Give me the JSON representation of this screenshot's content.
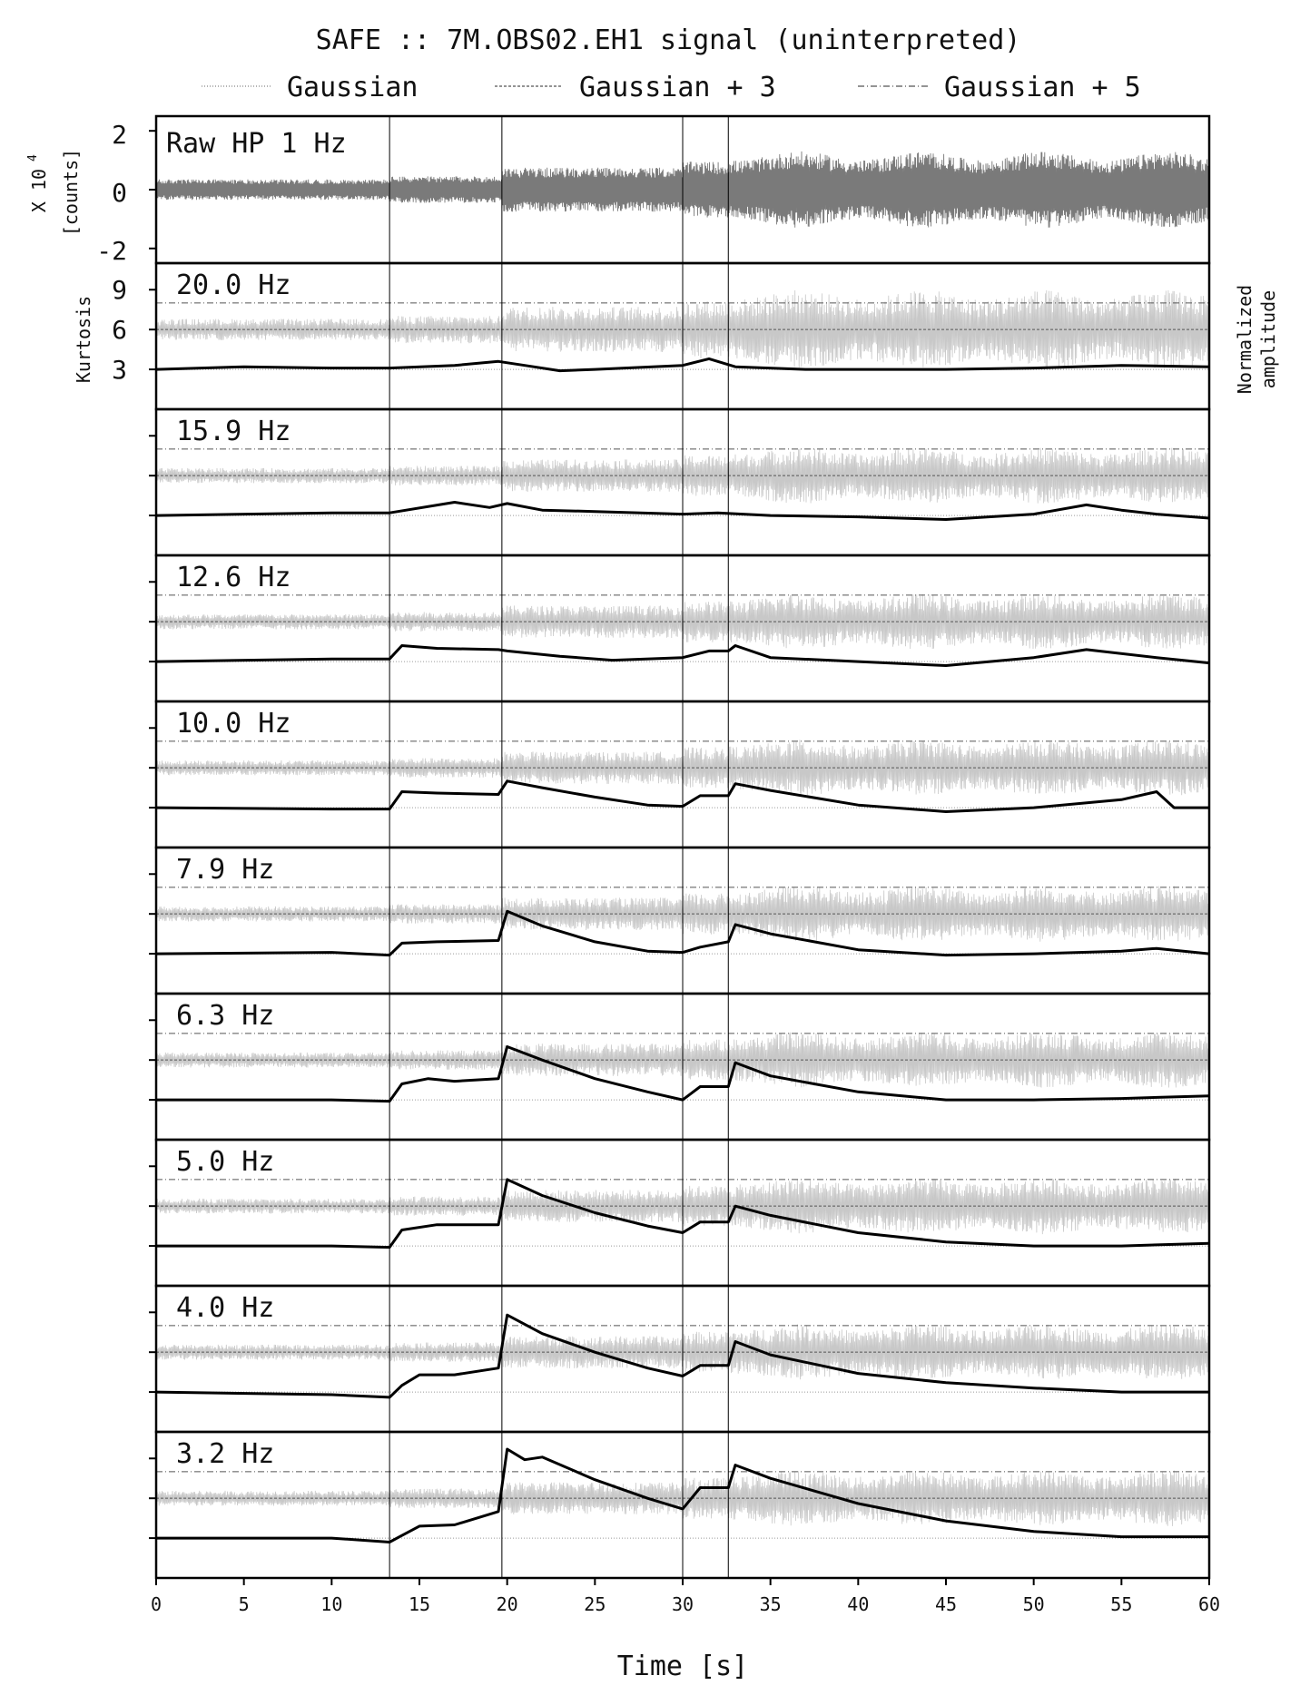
{
  "title": "SAFE :: 7M.OBS02.EH1 signal (uninterpreted)",
  "legend": [
    {
      "label": "Gaussian",
      "style": "dotted",
      "color": "#9a9a9a"
    },
    {
      "label": "Gaussian + 3",
      "style": "dashed",
      "color": "#555555"
    },
    {
      "label": "Gaussian + 5",
      "style": "dashdot",
      "color": "#555555"
    }
  ],
  "colors": {
    "raw": "#7a7a7a",
    "filtered": "#c8c8c8",
    "kurtosis": "#000000",
    "axes": "#000000"
  },
  "raw_panel": {
    "label": "Raw HP 1 Hz",
    "ylabel_line1": "X 10",
    "ylabel_exp": "4",
    "ylabel_line2": "[counts]",
    "yticks": [
      "2",
      "0",
      "-2"
    ]
  },
  "kurtosis_axis": {
    "label": "Kurtosis",
    "ticks": [
      "9",
      "6",
      "3"
    ]
  },
  "right_label": {
    "line1": "Normalized",
    "line2": "amplitude"
  },
  "xlabel": "Time [s]",
  "xticks": [
    "0",
    "5",
    "10",
    "15",
    "20",
    "25",
    "30",
    "35",
    "40",
    "45",
    "50",
    "55",
    "60"
  ],
  "chart_data": {
    "type": "line",
    "x_range": [
      0,
      60
    ],
    "raw_ylim": [
      -2.5,
      2.5
    ],
    "kurtosis_ylim": [
      0,
      11
    ],
    "gaussian_levels": [
      3,
      6,
      8
    ],
    "onsets": [
      13.3,
      19.7,
      30.0,
      32.6
    ],
    "bands": [
      {
        "label": "20.0 Hz",
        "kurtosis": [
          [
            0,
            3.0
          ],
          [
            5,
            3.2
          ],
          [
            10,
            3.1
          ],
          [
            13.3,
            3.1
          ],
          [
            17,
            3.3
          ],
          [
            19.5,
            3.6
          ],
          [
            21,
            3.3
          ],
          [
            23,
            2.9
          ],
          [
            25,
            3.0
          ],
          [
            30,
            3.3
          ],
          [
            31.5,
            3.8
          ],
          [
            33,
            3.2
          ],
          [
            37,
            3.0
          ],
          [
            45,
            3.0
          ],
          [
            50,
            3.1
          ],
          [
            55,
            3.3
          ],
          [
            60,
            3.2
          ]
        ]
      },
      {
        "label": "15.9 Hz",
        "kurtosis": [
          [
            0,
            3.0
          ],
          [
            10,
            3.2
          ],
          [
            13.3,
            3.2
          ],
          [
            17,
            4.0
          ],
          [
            19,
            3.6
          ],
          [
            20,
            3.9
          ],
          [
            22,
            3.4
          ],
          [
            25,
            3.3
          ],
          [
            30,
            3.1
          ],
          [
            32,
            3.2
          ],
          [
            35,
            3.0
          ],
          [
            40,
            2.9
          ],
          [
            45,
            2.7
          ],
          [
            50,
            3.1
          ],
          [
            53,
            3.8
          ],
          [
            55,
            3.4
          ],
          [
            57,
            3.1
          ],
          [
            60,
            2.8
          ]
        ]
      },
      {
        "label": "12.6 Hz",
        "kurtosis": [
          [
            0,
            3.0
          ],
          [
            10,
            3.2
          ],
          [
            13.3,
            3.2
          ],
          [
            14,
            4.2
          ],
          [
            16,
            4.0
          ],
          [
            19.5,
            3.9
          ],
          [
            20,
            3.8
          ],
          [
            23,
            3.4
          ],
          [
            26,
            3.1
          ],
          [
            30,
            3.3
          ],
          [
            31.5,
            3.8
          ],
          [
            32.6,
            3.8
          ],
          [
            33,
            4.2
          ],
          [
            35,
            3.3
          ],
          [
            40,
            3.0
          ],
          [
            45,
            2.7
          ],
          [
            50,
            3.3
          ],
          [
            53,
            3.9
          ],
          [
            57,
            3.3
          ],
          [
            60,
            2.9
          ]
        ]
      },
      {
        "label": "10.0 Hz",
        "kurtosis": [
          [
            0,
            3.0
          ],
          [
            10,
            2.9
          ],
          [
            13.3,
            2.9
          ],
          [
            14,
            4.2
          ],
          [
            16,
            4.1
          ],
          [
            19.5,
            4.0
          ],
          [
            20,
            5.0
          ],
          [
            22,
            4.5
          ],
          [
            25,
            3.8
          ],
          [
            28,
            3.2
          ],
          [
            30,
            3.1
          ],
          [
            31,
            3.9
          ],
          [
            32.6,
            3.9
          ],
          [
            33,
            4.8
          ],
          [
            35,
            4.3
          ],
          [
            40,
            3.2
          ],
          [
            45,
            2.7
          ],
          [
            50,
            3.0
          ],
          [
            55,
            3.6
          ],
          [
            57,
            4.2
          ],
          [
            58,
            3.0
          ],
          [
            60,
            3.0
          ]
        ]
      },
      {
        "label": "7.9 Hz",
        "kurtosis": [
          [
            0,
            3.0
          ],
          [
            10,
            3.1
          ],
          [
            13.3,
            2.9
          ],
          [
            14,
            3.8
          ],
          [
            16,
            3.9
          ],
          [
            19.5,
            4.0
          ],
          [
            20,
            6.2
          ],
          [
            22,
            5.1
          ],
          [
            25,
            3.9
          ],
          [
            28,
            3.2
          ],
          [
            30,
            3.1
          ],
          [
            31,
            3.5
          ],
          [
            32.6,
            3.9
          ],
          [
            33,
            5.2
          ],
          [
            35,
            4.5
          ],
          [
            40,
            3.3
          ],
          [
            45,
            2.9
          ],
          [
            50,
            3.0
          ],
          [
            55,
            3.2
          ],
          [
            57,
            3.4
          ],
          [
            60,
            3.0
          ]
        ]
      },
      {
        "label": "6.3 Hz",
        "kurtosis": [
          [
            0,
            3.0
          ],
          [
            10,
            3.0
          ],
          [
            13.3,
            2.9
          ],
          [
            14,
            4.2
          ],
          [
            15.5,
            4.6
          ],
          [
            17,
            4.4
          ],
          [
            19.5,
            4.6
          ],
          [
            20,
            7.0
          ],
          [
            22,
            6.0
          ],
          [
            25,
            4.6
          ],
          [
            28,
            3.6
          ],
          [
            30,
            3.0
          ],
          [
            31,
            4.0
          ],
          [
            32.6,
            4.0
          ],
          [
            33,
            5.8
          ],
          [
            35,
            4.8
          ],
          [
            40,
            3.6
          ],
          [
            45,
            3.0
          ],
          [
            50,
            3.0
          ],
          [
            55,
            3.1
          ],
          [
            60,
            3.3
          ]
        ]
      },
      {
        "label": "5.0 Hz",
        "kurtosis": [
          [
            0,
            3.0
          ],
          [
            10,
            3.0
          ],
          [
            13.3,
            2.9
          ],
          [
            14,
            4.2
          ],
          [
            16,
            4.6
          ],
          [
            19.5,
            4.6
          ],
          [
            20,
            8.0
          ],
          [
            22,
            6.8
          ],
          [
            25,
            5.5
          ],
          [
            28,
            4.5
          ],
          [
            30,
            4.0
          ],
          [
            31,
            4.8
          ],
          [
            32.6,
            4.8
          ],
          [
            33,
            6.0
          ],
          [
            35,
            5.3
          ],
          [
            40,
            4.0
          ],
          [
            45,
            3.3
          ],
          [
            50,
            3.0
          ],
          [
            55,
            3.0
          ],
          [
            60,
            3.2
          ]
        ]
      },
      {
        "label": "4.0 Hz",
        "kurtosis": [
          [
            0,
            3.0
          ],
          [
            10,
            2.8
          ],
          [
            13.3,
            2.6
          ],
          [
            14,
            3.5
          ],
          [
            15,
            4.3
          ],
          [
            17,
            4.3
          ],
          [
            19.5,
            4.8
          ],
          [
            20,
            8.8
          ],
          [
            22,
            7.4
          ],
          [
            25,
            6.0
          ],
          [
            28,
            4.8
          ],
          [
            30,
            4.2
          ],
          [
            31,
            5.0
          ],
          [
            32.6,
            5.0
          ],
          [
            33,
            6.8
          ],
          [
            35,
            5.8
          ],
          [
            40,
            4.4
          ],
          [
            45,
            3.7
          ],
          [
            50,
            3.3
          ],
          [
            55,
            3.0
          ],
          [
            60,
            3.0
          ]
        ]
      },
      {
        "label": "3.2 Hz",
        "kurtosis": [
          [
            0,
            3.0
          ],
          [
            10,
            3.0
          ],
          [
            13.3,
            2.7
          ],
          [
            14,
            3.2
          ],
          [
            15,
            3.9
          ],
          [
            17,
            4.0
          ],
          [
            19.5,
            5.0
          ],
          [
            20,
            9.7
          ],
          [
            21,
            8.9
          ],
          [
            22,
            9.1
          ],
          [
            25,
            7.4
          ],
          [
            28,
            6.0
          ],
          [
            30,
            5.2
          ],
          [
            31,
            6.8
          ],
          [
            32.6,
            6.8
          ],
          [
            33,
            8.5
          ],
          [
            35,
            7.5
          ],
          [
            40,
            5.6
          ],
          [
            45,
            4.3
          ],
          [
            50,
            3.5
          ],
          [
            55,
            3.1
          ],
          [
            60,
            3.1
          ]
        ]
      }
    ]
  }
}
